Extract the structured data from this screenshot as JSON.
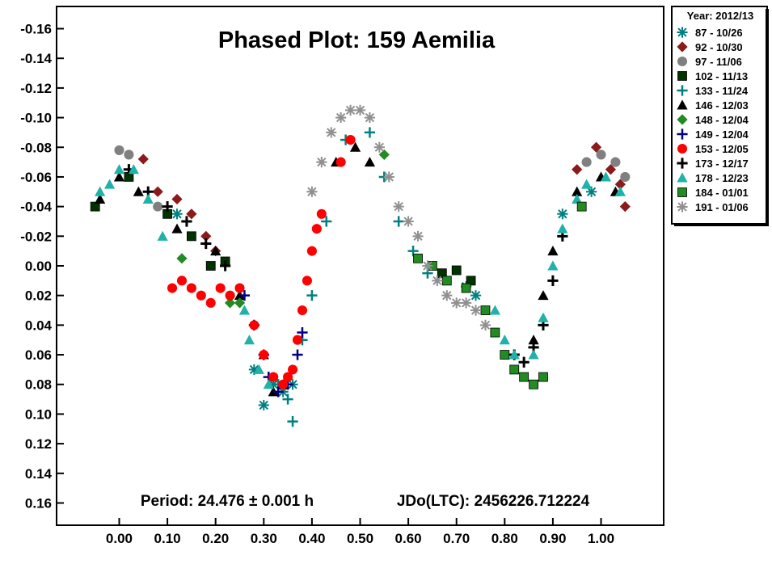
{
  "chart_data": {
    "type": "scatter",
    "title": "Phased Plot: 159 Aemilia",
    "period_text": "Period: 24.476 ± 0.001 h",
    "epoch_text": "JDo(LTC): 2456226.712224",
    "xlabel": "",
    "ylabel": "",
    "xlim": [
      -0.13,
      1.13
    ],
    "ylim": [
      -0.175,
      0.175
    ],
    "y_inverted": true,
    "x_ticks": [
      "0.00",
      "0.10",
      "0.20",
      "0.30",
      "0.40",
      "0.50",
      "0.60",
      "0.70",
      "0.80",
      "0.90",
      "1.00"
    ],
    "x_tick_values": [
      0,
      0.1,
      0.2,
      0.3,
      0.4,
      0.5,
      0.6,
      0.7,
      0.8,
      0.9,
      1.0
    ],
    "y_ticks": [
      "-0.16",
      "-0.14",
      "-0.12",
      "-0.10",
      "-0.08",
      "-0.06",
      "-0.04",
      "-0.02",
      "0.00",
      "0.02",
      "0.04",
      "0.06",
      "0.08",
      "0.10",
      "0.12",
      "0.14",
      "0.16"
    ],
    "y_tick_values": [
      -0.16,
      -0.14,
      -0.12,
      -0.1,
      -0.08,
      -0.06,
      -0.04,
      -0.02,
      0,
      0.02,
      0.04,
      0.06,
      0.08,
      0.1,
      0.12,
      0.14,
      0.16
    ],
    "grid": false,
    "legend_position": "outside-right-top",
    "legend_title": "Year: 2012/13",
    "series": [
      {
        "name": "87 - 10/26",
        "marker": "asterisk",
        "color": "#008080",
        "points": [
          [
            0.12,
            -0.035
          ],
          [
            0.28,
            0.07
          ],
          [
            0.3,
            0.094
          ],
          [
            0.32,
            0.08
          ],
          [
            0.34,
            0.085
          ],
          [
            0.36,
            0.08
          ],
          [
            0.72,
            0.014
          ],
          [
            0.74,
            0.02
          ],
          [
            0.92,
            -0.035
          ],
          [
            0.98,
            -0.05
          ]
        ]
      },
      {
        "name": "92 - 10/30",
        "marker": "diamond",
        "color": "#8b1a1a",
        "points": [
          [
            0.05,
            -0.072
          ],
          [
            0.08,
            -0.05
          ],
          [
            0.12,
            -0.045
          ],
          [
            0.15,
            -0.035
          ],
          [
            0.18,
            -0.02
          ],
          [
            0.2,
            -0.01
          ],
          [
            0.95,
            -0.065
          ],
          [
            0.99,
            -0.08
          ],
          [
            1.02,
            -0.065
          ],
          [
            1.04,
            -0.055
          ],
          [
            1.05,
            -0.04
          ]
        ]
      },
      {
        "name": "97 - 11/06",
        "marker": "circle",
        "color": "#808080",
        "points": [
          [
            0.0,
            -0.078
          ],
          [
            0.02,
            -0.075
          ],
          [
            0.08,
            -0.04
          ],
          [
            0.97,
            -0.07
          ],
          [
            1.0,
            -0.075
          ],
          [
            1.03,
            -0.07
          ],
          [
            1.05,
            -0.06
          ]
        ]
      },
      {
        "name": "102 - 11/13",
        "marker": "square",
        "color": "#003300",
        "points": [
          [
            -0.05,
            -0.04
          ],
          [
            0.02,
            -0.06
          ],
          [
            0.1,
            -0.035
          ],
          [
            0.15,
            -0.02
          ],
          [
            0.19,
            0.0
          ],
          [
            0.22,
            -0.003
          ],
          [
            0.67,
            0.005
          ],
          [
            0.7,
            0.003
          ],
          [
            0.73,
            0.01
          ]
        ]
      },
      {
        "name": "133 - 11/24",
        "marker": "plus",
        "color": "#008080",
        "points": [
          [
            0.33,
            0.08
          ],
          [
            0.35,
            0.09
          ],
          [
            0.36,
            0.105
          ],
          [
            0.38,
            0.05
          ],
          [
            0.4,
            0.02
          ],
          [
            0.43,
            -0.03
          ],
          [
            0.47,
            -0.085
          ],
          [
            0.52,
            -0.09
          ],
          [
            0.55,
            -0.06
          ],
          [
            0.58,
            -0.03
          ],
          [
            0.61,
            -0.01
          ],
          [
            0.64,
            0.005
          ]
        ]
      },
      {
        "name": "146 - 12/03",
        "marker": "triangle",
        "color": "#000000",
        "points": [
          [
            -0.04,
            -0.045
          ],
          [
            0.0,
            -0.06
          ],
          [
            0.04,
            -0.05
          ],
          [
            0.12,
            -0.025
          ],
          [
            0.2,
            -0.01
          ],
          [
            0.25,
            0.02
          ],
          [
            0.3,
            0.06
          ],
          [
            0.32,
            0.085
          ],
          [
            0.34,
            0.08
          ],
          [
            0.45,
            -0.07
          ],
          [
            0.49,
            -0.08
          ],
          [
            0.52,
            -0.07
          ],
          [
            0.86,
            0.05
          ],
          [
            0.88,
            0.02
          ],
          [
            0.9,
            -0.01
          ],
          [
            0.95,
            -0.05
          ],
          [
            1.0,
            -0.06
          ],
          [
            1.03,
            -0.05
          ]
        ]
      },
      {
        "name": "148 - 12/04",
        "marker": "diamond",
        "color": "#228b22",
        "points": [
          [
            0.13,
            -0.005
          ],
          [
            0.23,
            0.025
          ],
          [
            0.25,
            0.025
          ],
          [
            0.55,
            -0.075
          ]
        ]
      },
      {
        "name": "149 - 12/04",
        "marker": "plus",
        "color": "#000080",
        "points": [
          [
            0.26,
            0.02
          ],
          [
            0.28,
            0.04
          ],
          [
            0.3,
            0.06
          ],
          [
            0.31,
            0.075
          ],
          [
            0.33,
            0.085
          ],
          [
            0.35,
            0.08
          ],
          [
            0.37,
            0.06
          ],
          [
            0.38,
            0.045
          ]
        ]
      },
      {
        "name": "153 - 12/05",
        "marker": "circle",
        "color": "#ff0000",
        "points": [
          [
            0.11,
            0.015
          ],
          [
            0.13,
            0.01
          ],
          [
            0.15,
            0.015
          ],
          [
            0.17,
            0.02
          ],
          [
            0.19,
            0.025
          ],
          [
            0.21,
            0.015
          ],
          [
            0.23,
            0.02
          ],
          [
            0.25,
            0.015
          ],
          [
            0.28,
            0.04
          ],
          [
            0.3,
            0.06
          ],
          [
            0.32,
            0.075
          ],
          [
            0.34,
            0.08
          ],
          [
            0.35,
            0.075
          ],
          [
            0.36,
            0.07
          ],
          [
            0.37,
            0.05
          ],
          [
            0.38,
            0.03
          ],
          [
            0.39,
            0.01
          ],
          [
            0.4,
            -0.01
          ],
          [
            0.41,
            -0.025
          ],
          [
            0.42,
            -0.035
          ],
          [
            0.46,
            -0.07
          ],
          [
            0.48,
            -0.085
          ]
        ]
      },
      {
        "name": "173 - 12/17",
        "marker": "cross",
        "color": "#000000",
        "points": [
          [
            0.02,
            -0.065
          ],
          [
            0.06,
            -0.05
          ],
          [
            0.1,
            -0.04
          ],
          [
            0.14,
            -0.03
          ],
          [
            0.18,
            -0.015
          ],
          [
            0.22,
            0.0
          ],
          [
            0.82,
            0.06
          ],
          [
            0.84,
            0.065
          ],
          [
            0.86,
            0.055
          ],
          [
            0.88,
            0.04
          ],
          [
            0.9,
            0.01
          ],
          [
            0.92,
            -0.02
          ]
        ]
      },
      {
        "name": "178 - 12/23",
        "marker": "triangle",
        "color": "#20b2aa",
        "points": [
          [
            -0.04,
            -0.05
          ],
          [
            -0.02,
            -0.055
          ],
          [
            0.0,
            -0.065
          ],
          [
            0.03,
            -0.065
          ],
          [
            0.06,
            -0.045
          ],
          [
            0.09,
            -0.02
          ],
          [
            0.26,
            0.03
          ],
          [
            0.27,
            0.05
          ],
          [
            0.29,
            0.07
          ],
          [
            0.31,
            0.08
          ],
          [
            0.78,
            0.03
          ],
          [
            0.8,
            0.05
          ],
          [
            0.82,
            0.06
          ],
          [
            0.86,
            0.06
          ],
          [
            0.88,
            0.035
          ],
          [
            0.9,
            0.0
          ],
          [
            0.92,
            -0.025
          ],
          [
            0.95,
            -0.045
          ],
          [
            0.97,
            -0.055
          ],
          [
            1.01,
            -0.06
          ],
          [
            1.04,
            -0.05
          ]
        ]
      },
      {
        "name": "184 - 01/01",
        "marker": "square",
        "color": "#228b22",
        "points": [
          [
            0.62,
            -0.005
          ],
          [
            0.65,
            0.0
          ],
          [
            0.68,
            0.01
          ],
          [
            0.72,
            0.015
          ],
          [
            0.76,
            0.03
          ],
          [
            0.78,
            0.045
          ],
          [
            0.8,
            0.06
          ],
          [
            0.82,
            0.07
          ],
          [
            0.84,
            0.075
          ],
          [
            0.86,
            0.08
          ],
          [
            0.88,
            0.075
          ],
          [
            0.96,
            -0.04
          ]
        ]
      },
      {
        "name": "191 - 01/06",
        "marker": "asterisk",
        "color": "#909090",
        "points": [
          [
            0.4,
            -0.05
          ],
          [
            0.42,
            -0.07
          ],
          [
            0.44,
            -0.09
          ],
          [
            0.46,
            -0.1
          ],
          [
            0.48,
            -0.105
          ],
          [
            0.5,
            -0.105
          ],
          [
            0.52,
            -0.1
          ],
          [
            0.54,
            -0.08
          ],
          [
            0.56,
            -0.06
          ],
          [
            0.58,
            -0.04
          ],
          [
            0.6,
            -0.03
          ],
          [
            0.62,
            -0.02
          ],
          [
            0.64,
            0.0
          ],
          [
            0.66,
            0.01
          ],
          [
            0.68,
            0.02
          ],
          [
            0.7,
            0.025
          ],
          [
            0.72,
            0.025
          ],
          [
            0.74,
            0.03
          ],
          [
            0.76,
            0.04
          ]
        ]
      }
    ]
  }
}
